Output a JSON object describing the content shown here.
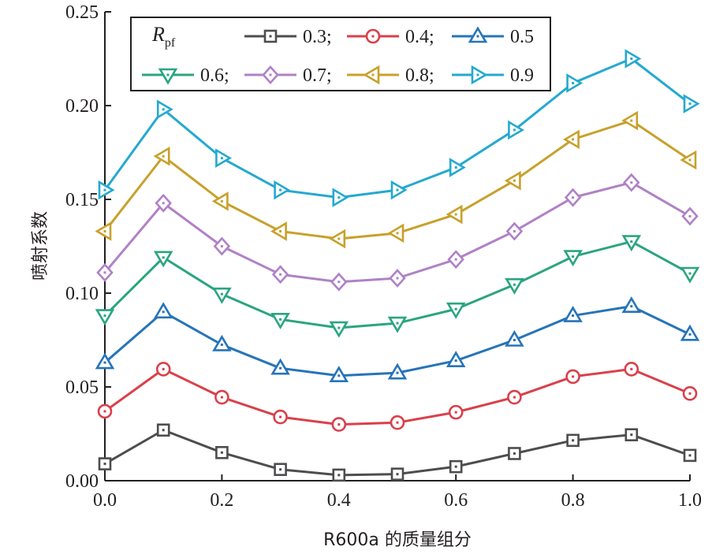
{
  "chart_data": {
    "type": "line",
    "xlabel": "R600a 的质量组分",
    "ylabel": "喷射系数",
    "xlim": [
      0.0,
      1.0
    ],
    "ylim": [
      0.0,
      0.25
    ],
    "x_ticks": [
      "0.0",
      "0.2",
      "0.4",
      "0.6",
      "0.8",
      "1.0"
    ],
    "y_ticks": [
      "0.00",
      "0.05",
      "0.10",
      "0.15",
      "0.20",
      "0.25"
    ],
    "grid": false,
    "legend": {
      "placement": "top-left",
      "title_main": "R",
      "title_sub": "pf",
      "separator": ";"
    },
    "x": [
      0.0,
      0.1,
      0.2,
      0.3,
      0.4,
      0.5,
      0.6,
      0.7,
      0.8,
      0.9,
      1.0
    ],
    "series": [
      {
        "name": "0.3",
        "color": "#4d4d4f",
        "marker": "square",
        "values": [
          0.009,
          0.027,
          0.015,
          0.006,
          0.003,
          0.0035,
          0.0075,
          0.0145,
          0.0215,
          0.0245,
          0.0135
        ]
      },
      {
        "name": "0.4",
        "color": "#d9404b",
        "marker": "circle",
        "values": [
          0.037,
          0.0595,
          0.0445,
          0.034,
          0.03,
          0.031,
          0.0365,
          0.0445,
          0.0555,
          0.0595,
          0.0465
        ]
      },
      {
        "name": "0.5",
        "color": "#2674b8",
        "marker": "triangle-up",
        "values": [
          0.063,
          0.09,
          0.0725,
          0.06,
          0.056,
          0.0575,
          0.064,
          0.075,
          0.088,
          0.093,
          0.078
        ]
      },
      {
        "name": "0.6",
        "color": "#2aa57f",
        "marker": "triangle-down",
        "values": [
          0.088,
          0.119,
          0.0995,
          0.086,
          0.0815,
          0.084,
          0.0915,
          0.1045,
          0.1195,
          0.1275,
          0.1105
        ]
      },
      {
        "name": "0.7",
        "color": "#b081c6",
        "marker": "diamond",
        "values": [
          0.111,
          0.148,
          0.125,
          0.11,
          0.106,
          0.108,
          0.118,
          0.133,
          0.151,
          0.159,
          0.141
        ]
      },
      {
        "name": "0.8",
        "color": "#c8a12b",
        "marker": "triangle-left",
        "values": [
          0.133,
          0.173,
          0.149,
          0.133,
          0.129,
          0.132,
          0.142,
          0.16,
          0.182,
          0.192,
          0.171
        ]
      },
      {
        "name": "0.9",
        "color": "#25a9cf",
        "marker": "triangle-right",
        "values": [
          0.155,
          0.198,
          0.172,
          0.155,
          0.151,
          0.155,
          0.167,
          0.187,
          0.212,
          0.225,
          0.201
        ]
      }
    ]
  }
}
